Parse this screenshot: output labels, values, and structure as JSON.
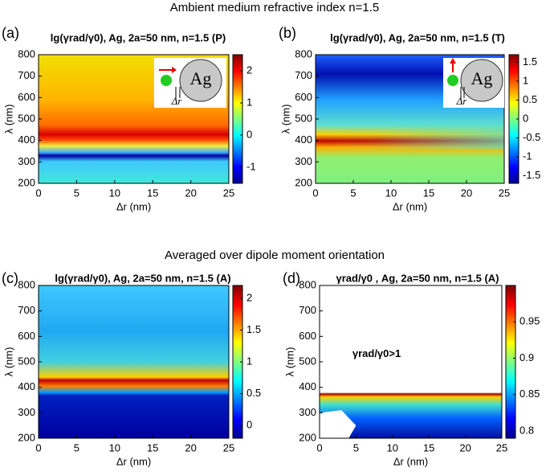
{
  "headings": [
    "Ambient medium refractive index n=1.5",
    "Averaged over dipole moment orientation"
  ],
  "chart_data": [
    {
      "type": "heatmap",
      "panel": "(a)",
      "title": "lg(γrad/γ0), Ag, 2a=50 nm, n=1.5 (P)",
      "xlabel": "Δr (nm)",
      "ylabel": "λ (nm)",
      "xlim": [
        0,
        25
      ],
      "xticks": [
        0,
        5,
        10,
        15,
        20,
        25
      ],
      "ylim": [
        200,
        800
      ],
      "yticks": [
        200,
        300,
        400,
        500,
        600,
        700,
        800
      ],
      "clim": [
        -1.5,
        2.5
      ],
      "cticks": [
        -1,
        0,
        1,
        2
      ],
      "colormap": "jet",
      "inset_labels": [
        "Ag",
        "Δr"
      ]
    },
    {
      "type": "heatmap",
      "panel": "(b)",
      "title": "lg(γrad/γ0), Ag, 2a=50 nm, n=1.5 (T)",
      "xlabel": "Δr (nm)",
      "ylabel": "λ (nm)",
      "xlim": [
        0,
        25
      ],
      "xticks": [
        0,
        5,
        10,
        15,
        20,
        25
      ],
      "ylim": [
        200,
        800
      ],
      "yticks": [
        200,
        300,
        400,
        500,
        600,
        700,
        800
      ],
      "clim": [
        -1.7,
        1.7
      ],
      "cticks": [
        -1.5,
        -1,
        -0.5,
        0,
        0.5,
        1,
        1.5
      ],
      "colormap": "jet",
      "inset_labels": [
        "Ag",
        "Δr"
      ]
    },
    {
      "type": "heatmap",
      "panel": "(c)",
      "title": "lg(γrad/γ0), Ag, 2a=50 nm, n=1.5 (A)",
      "xlabel": "Δr (nm)",
      "ylabel": "λ (nm)",
      "xlim": [
        0,
        25
      ],
      "xticks": [
        0,
        5,
        10,
        15,
        20,
        25
      ],
      "ylim": [
        200,
        800
      ],
      "yticks": [
        200,
        300,
        400,
        500,
        600,
        700,
        800
      ],
      "clim": [
        -0.2,
        2.2
      ],
      "cticks": [
        0,
        0.5,
        1,
        1.5,
        2
      ],
      "colormap": "jet"
    },
    {
      "type": "heatmap",
      "panel": "(d)",
      "title": "γrad/γ0 , Ag, 2a=50 nm, n=1.5 (A)",
      "xlabel": "Δr (nm)",
      "ylabel": "λ (nm)",
      "xlim": [
        0,
        25
      ],
      "xticks": [
        0,
        5,
        10,
        15,
        20,
        25
      ],
      "ylim": [
        200,
        800
      ],
      "yticks": [
        200,
        300,
        400,
        500,
        600,
        700,
        800
      ],
      "clim": [
        0.79,
        1.0
      ],
      "cticks": [
        0.8,
        0.85,
        0.9,
        0.95
      ],
      "colormap": "jet",
      "annotation": "γrad/γ0>1"
    }
  ]
}
